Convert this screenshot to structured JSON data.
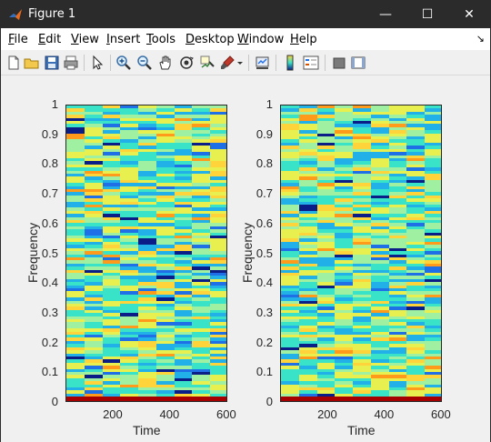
{
  "window": {
    "title": "Figure 1",
    "controls": {
      "minimize": "—",
      "maximize": "☐",
      "close": "✕"
    }
  },
  "menubar": {
    "items": [
      "File",
      "Edit",
      "View",
      "Insert",
      "Tools",
      "Desktop",
      "Window",
      "Help"
    ],
    "dock_glyph": "↘"
  },
  "toolbar": {
    "buttons": [
      "new-figure-icon",
      "open-file-icon",
      "save-icon",
      "print-icon",
      "pointer-icon",
      "zoom-in-icon",
      "zoom-out-icon",
      "pan-icon",
      "rotate-3d-icon",
      "data-cursor-icon",
      "brush-icon",
      "brush-dropdown-icon",
      "link-plot-icon",
      "colorbar-icon",
      "legend-icon",
      "hide-plot-tools-icon",
      "show-plot-tools-icon"
    ]
  },
  "chart_data": [
    {
      "type": "heatmap",
      "title": "",
      "xlabel": "Time",
      "ylabel": "Frequency",
      "xlim": [
        30,
        600
      ],
      "ylim": [
        0,
        1
      ],
      "xticks": [
        "200",
        "400",
        "600"
      ],
      "yticks": [
        "0",
        "0.1",
        "0.2",
        "0.3",
        "0.4",
        "0.5",
        "0.6",
        "0.7",
        "0.8",
        "0.9",
        "1"
      ],
      "colormap": [
        "#0b1e88",
        "#1f6fe6",
        "#21b0e8",
        "#38e3c8",
        "#9ff0a0",
        "#e8f050",
        "#ffd43a",
        "#ff9a1a",
        "#a60000"
      ]
    },
    {
      "type": "heatmap",
      "title": "",
      "xlabel": "Time",
      "ylabel": "Frequency",
      "xlim": [
        30,
        600
      ],
      "ylim": [
        0,
        1
      ],
      "xticks": [
        "200",
        "400",
        "600"
      ],
      "yticks": [
        "0",
        "0.1",
        "0.2",
        "0.3",
        "0.4",
        "0.5",
        "0.6",
        "0.7",
        "0.8",
        "0.9",
        "1"
      ],
      "colormap": [
        "#0b1e88",
        "#1f6fe6",
        "#21b0e8",
        "#38e3c8",
        "#9ff0a0",
        "#e8f050",
        "#ffd43a",
        "#ff9a1a",
        "#a60000"
      ]
    }
  ]
}
